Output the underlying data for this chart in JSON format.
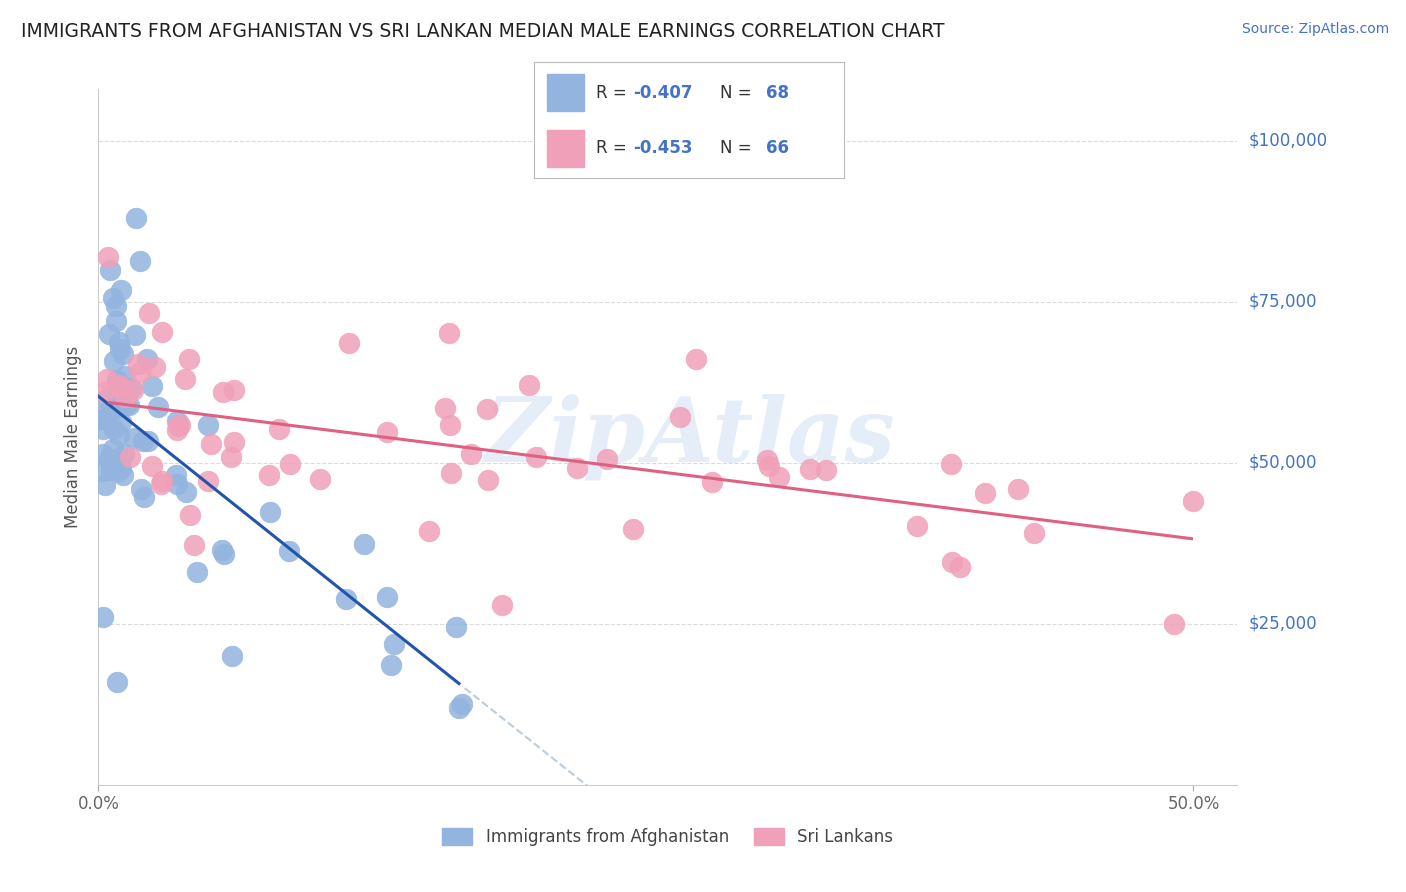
{
  "title": "IMMIGRANTS FROM AFGHANISTAN VS SRI LANKAN MEDIAN MALE EARNINGS CORRELATION CHART",
  "source": "Source: ZipAtlas.com",
  "ylabel": "Median Male Earnings",
  "xlim": [
    0.0,
    0.52
  ],
  "ylim": [
    0,
    108000
  ],
  "xtick_positions": [
    0.0,
    0.5
  ],
  "xtick_labels": [
    "0.0%",
    "50.0%"
  ],
  "ytick_positions": [
    0,
    25000,
    50000,
    75000,
    100000
  ],
  "ytick_labels_right": [
    "",
    "$25,000",
    "$50,000",
    "$75,000",
    "$100,000"
  ],
  "afghanistan_color": "#92b4df",
  "afghanistan_edge_color": "#92b4df",
  "srilanka_color": "#f0a0b8",
  "srilanka_edge_color": "#f0a0b8",
  "afghanistan_line_color": "#2255aa",
  "srilanka_line_color": "#e06080",
  "dash_line_color": "#bbccdd",
  "background_color": "#ffffff",
  "grid_color": "#cccccc",
  "legend_label_afghanistan": "Immigrants from Afghanistan",
  "legend_label_srilanka": "Sri Lankans",
  "watermark": "ZipAtlas",
  "title_color": "#222222",
  "blue_color": "#4472c4",
  "source_color": "#4472c4",
  "af_intercept": 63000,
  "af_slope": -320000,
  "sr_intercept": 57000,
  "sr_slope": -35000
}
